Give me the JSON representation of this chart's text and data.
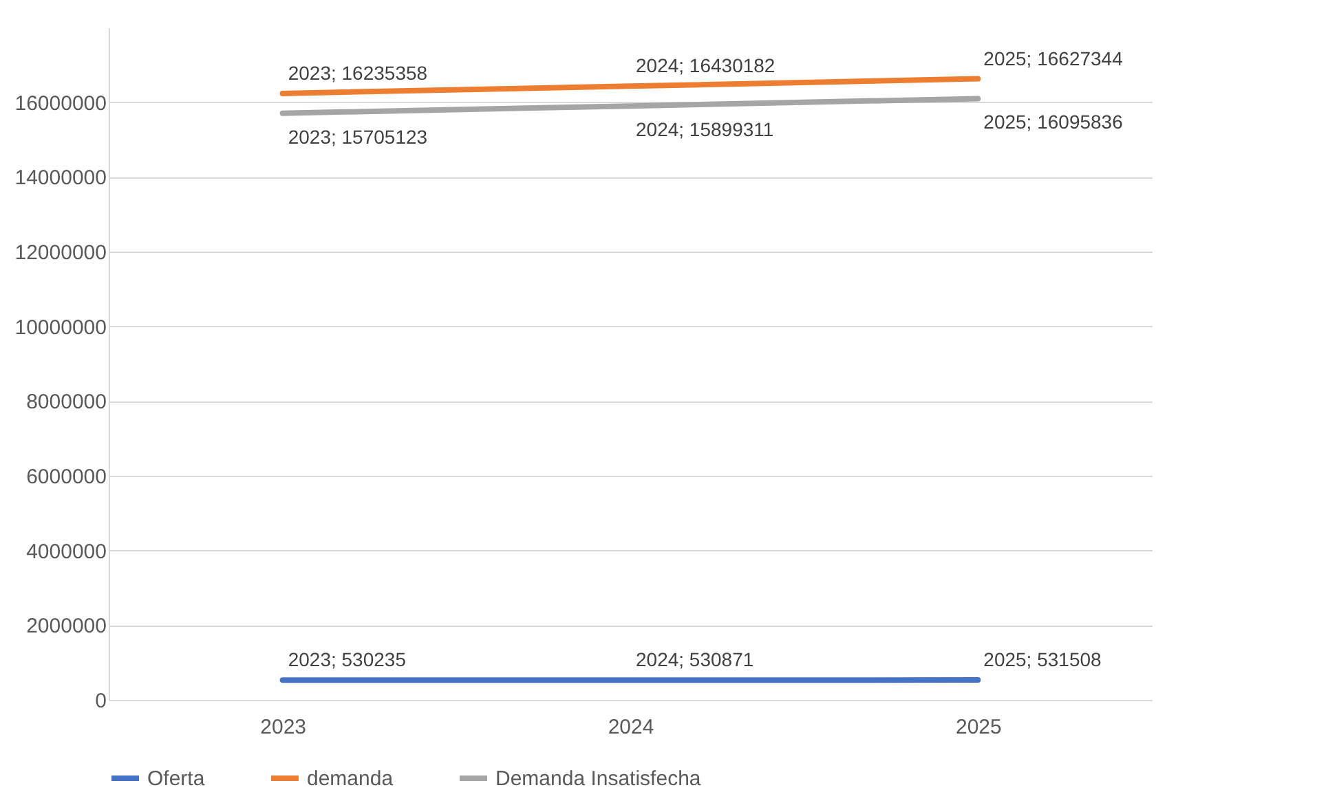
{
  "chart_data": {
    "type": "line",
    "categories": [
      "2023",
      "2024",
      "2025"
    ],
    "series": [
      {
        "name": "Oferta",
        "color": "#4472c4",
        "values": [
          530235,
          530871,
          531508
        ],
        "value_labels": [
          "2023; 530235",
          "2024; 530871",
          "2025; 531508"
        ]
      },
      {
        "name": "demanda",
        "color": "#ed7d31",
        "values": [
          16235358,
          16430182,
          16627344
        ],
        "value_labels": [
          "2023; 16235358",
          "2024; 16430182",
          "2025; 16627344"
        ]
      },
      {
        "name": "Demanda Insatisfecha",
        "color": "#a5a5a5",
        "values": [
          15705123,
          15899311,
          16095836
        ],
        "value_labels": [
          "2023; 15705123",
          "2024; 15899311",
          "2025; 16095836"
        ]
      }
    ],
    "ylim": [
      0,
      18000000
    ],
    "yticks": [
      0,
      2000000,
      4000000,
      6000000,
      8000000,
      10000000,
      12000000,
      14000000,
      16000000
    ],
    "grid": "y",
    "legend": "bottom",
    "line_style": "solid",
    "marker": "none"
  }
}
